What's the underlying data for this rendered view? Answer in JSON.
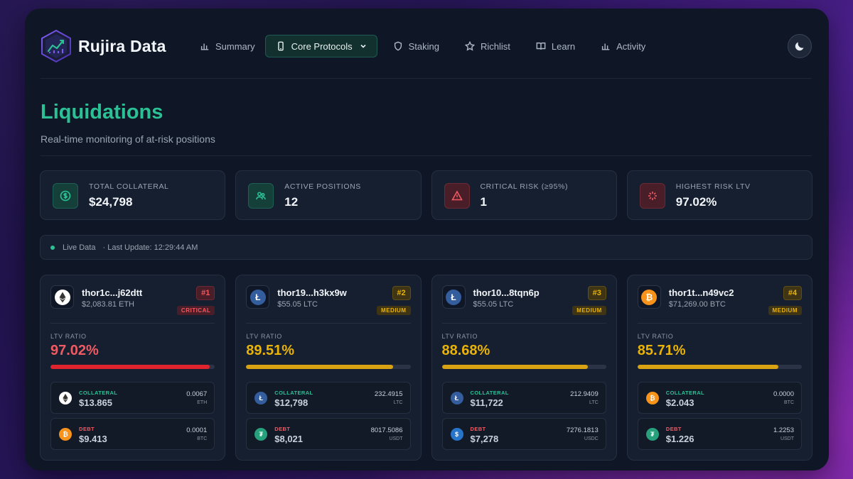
{
  "brand": "Rujira Data",
  "nav": [
    {
      "label": "Summary",
      "icon": "bar-chart-icon"
    },
    {
      "label": "Core Protocols",
      "icon": "phone-icon",
      "active": true
    },
    {
      "label": "Staking",
      "icon": "shield-icon"
    },
    {
      "label": "Richlist",
      "icon": "star-icon"
    },
    {
      "label": "Learn",
      "icon": "book-icon"
    },
    {
      "label": "Activity",
      "icon": "bar-chart-icon"
    }
  ],
  "theme_toggle_icon": "moon-icon",
  "page": {
    "title": "Liquidations",
    "subtitle": "Real-time monitoring of at-risk positions"
  },
  "stats": [
    {
      "label": "TOTAL COLLATERAL",
      "value": "$24,798",
      "icon": "dollar-circle-icon",
      "tone": "green"
    },
    {
      "label": "ACTIVE POSITIONS",
      "value": "12",
      "icon": "users-icon",
      "tone": "green"
    },
    {
      "label": "CRITICAL RISK (≥95%)",
      "value": "1",
      "icon": "warning-icon",
      "tone": "red"
    },
    {
      "label": "HIGHEST RISK LTV",
      "value": "97.02%",
      "icon": "sparkle-icon",
      "tone": "red"
    }
  ],
  "live": {
    "status": "Live Data",
    "last_update": "· Last Update: 12:29:44 AM"
  },
  "positions": [
    {
      "address": "thor1c...j62dtt",
      "amount": "$2,083.81 ETH",
      "asset": "eth",
      "rank": "#1",
      "risk": "CRITICAL",
      "tone": "red",
      "ltv_label": "LTV RATIO",
      "ltv": "97.02%",
      "ltv_value": 97.02,
      "collateral": {
        "label": "COLLATERAL",
        "usd": "$13.865",
        "qty": "0.0067",
        "symbol": "ETH",
        "asset": "eth"
      },
      "debt": {
        "label": "DEBT",
        "usd": "$9.413",
        "qty": "0.0001",
        "symbol": "BTC",
        "asset": "btc"
      }
    },
    {
      "address": "thor19...h3kx9w",
      "amount": "$55.05 LTC",
      "asset": "ltc",
      "rank": "#2",
      "risk": "MEDIUM",
      "tone": "yellow",
      "ltv_label": "LTV RATIO",
      "ltv": "89.51%",
      "ltv_value": 89.51,
      "collateral": {
        "label": "COLLATERAL",
        "usd": "$12,798",
        "qty": "232.4915",
        "symbol": "LTC",
        "asset": "ltc"
      },
      "debt": {
        "label": "DEBT",
        "usd": "$8,021",
        "qty": "8017.5086",
        "symbol": "USDT",
        "asset": "usdt"
      }
    },
    {
      "address": "thor10...8tqn6p",
      "amount": "$55.05 LTC",
      "asset": "ltc",
      "rank": "#3",
      "risk": "MEDIUM",
      "tone": "yellow",
      "ltv_label": "LTV RATIO",
      "ltv": "88.68%",
      "ltv_value": 88.68,
      "collateral": {
        "label": "COLLATERAL",
        "usd": "$11,722",
        "qty": "212.9409",
        "symbol": "LTC",
        "asset": "ltc"
      },
      "debt": {
        "label": "DEBT",
        "usd": "$7,278",
        "qty": "7276.1813",
        "symbol": "USDC",
        "asset": "usdc"
      }
    },
    {
      "address": "thor1t...n49vc2",
      "amount": "$71,269.00 BTC",
      "asset": "btc",
      "rank": "#4",
      "risk": "MEDIUM",
      "tone": "yellow",
      "ltv_label": "LTV RATIO",
      "ltv": "85.71%",
      "ltv_value": 85.71,
      "collateral": {
        "label": "COLLATERAL",
        "usd": "$2.043",
        "qty": "0.0000",
        "symbol": "BTC",
        "asset": "btc"
      },
      "debt": {
        "label": "DEBT",
        "usd": "$1.226",
        "qty": "1.2253",
        "symbol": "USDT",
        "asset": "usdt"
      }
    }
  ]
}
